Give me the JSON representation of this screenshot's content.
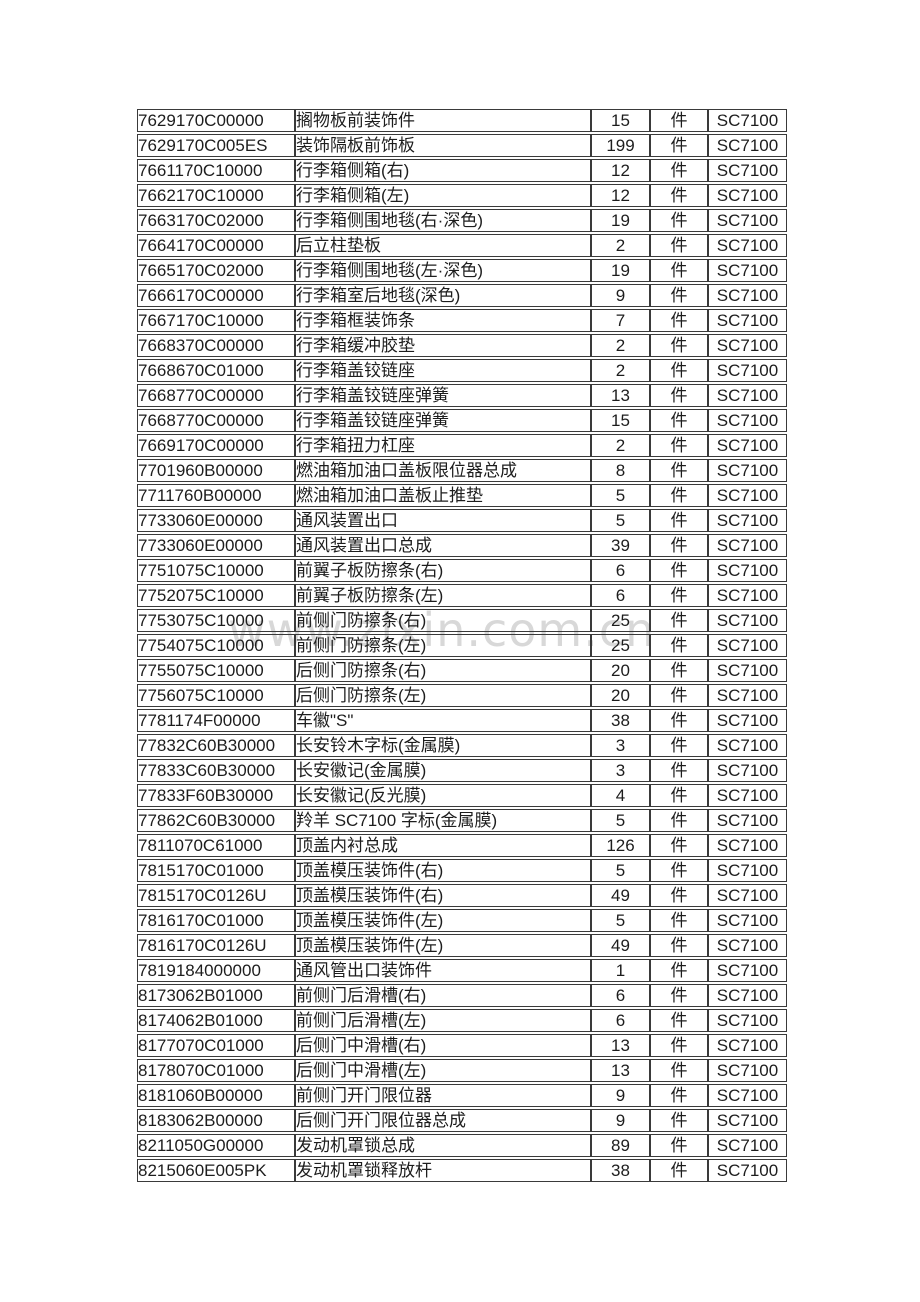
{
  "watermark": {
    "text": "www.zlxin.com.cn",
    "color": "#d8d8d8"
  },
  "table": {
    "columns": [
      {
        "key": "part_number"
      },
      {
        "key": "description"
      },
      {
        "key": "quantity"
      },
      {
        "key": "unit"
      },
      {
        "key": "model"
      }
    ],
    "rows": [
      {
        "part_number": "7629170C00000",
        "description": "搁物板前装饰件",
        "quantity": "15",
        "unit": "件",
        "model": "SC7100"
      },
      {
        "part_number": "7629170C005ES",
        "description": "装饰隔板前饰板",
        "quantity": "199",
        "unit": "件",
        "model": "SC7100"
      },
      {
        "part_number": "7661170C10000",
        "description": "行李箱侧箱(右)",
        "quantity": "12",
        "unit": "件",
        "model": "SC7100"
      },
      {
        "part_number": "7662170C10000",
        "description": "行李箱侧箱(左)",
        "quantity": "12",
        "unit": "件",
        "model": "SC7100"
      },
      {
        "part_number": "7663170C02000",
        "description": "行李箱侧围地毯(右·深色)",
        "quantity": "19",
        "unit": "件",
        "model": "SC7100"
      },
      {
        "part_number": "7664170C00000",
        "description": "后立柱垫板",
        "quantity": "2",
        "unit": "件",
        "model": "SC7100"
      },
      {
        "part_number": "7665170C02000",
        "description": "行李箱侧围地毯(左·深色)",
        "quantity": "19",
        "unit": "件",
        "model": "SC7100"
      },
      {
        "part_number": "7666170C00000",
        "description": "行李箱室后地毯(深色)",
        "quantity": "9",
        "unit": "件",
        "model": "SC7100"
      },
      {
        "part_number": "7667170C10000",
        "description": "行李箱框装饰条",
        "quantity": "7",
        "unit": "件",
        "model": "SC7100"
      },
      {
        "part_number": "7668370C00000",
        "description": "行李箱缓冲胶垫",
        "quantity": "2",
        "unit": "件",
        "model": "SC7100"
      },
      {
        "part_number": "7668670C01000",
        "description": "行李箱盖铰链座",
        "quantity": "2",
        "unit": "件",
        "model": "SC7100"
      },
      {
        "part_number": "7668770C00000",
        "description": "行李箱盖铰链座弹簧",
        "quantity": "13",
        "unit": "件",
        "model": "SC7100"
      },
      {
        "part_number": "7668770C00000",
        "description": "行李箱盖铰链座弹簧",
        "quantity": "15",
        "unit": "件",
        "model": "SC7100"
      },
      {
        "part_number": "7669170C00000",
        "description": "行李箱扭力杠座",
        "quantity": "2",
        "unit": "件",
        "model": "SC7100"
      },
      {
        "part_number": "7701960B00000",
        "description": "燃油箱加油口盖板限位器总成",
        "quantity": "8",
        "unit": "件",
        "model": "SC7100"
      },
      {
        "part_number": "7711760B00000",
        "description": "燃油箱加油口盖板止推垫",
        "quantity": "5",
        "unit": "件",
        "model": "SC7100"
      },
      {
        "part_number": "7733060E00000",
        "description": "通风装置出口",
        "quantity": "5",
        "unit": "件",
        "model": "SC7100"
      },
      {
        "part_number": "7733060E00000",
        "description": "通风装置出口总成",
        "quantity": "39",
        "unit": "件",
        "model": "SC7100"
      },
      {
        "part_number": "7751075C10000",
        "description": "前翼子板防擦条(右)",
        "quantity": "6",
        "unit": "件",
        "model": "SC7100"
      },
      {
        "part_number": "7752075C10000",
        "description": "前翼子板防擦条(左)",
        "quantity": "6",
        "unit": "件",
        "model": "SC7100"
      },
      {
        "part_number": "7753075C10000",
        "description": "前侧门防擦条(右)",
        "quantity": "25",
        "unit": "件",
        "model": "SC7100"
      },
      {
        "part_number": "7754075C10000",
        "description": "前侧门防擦条(左)",
        "quantity": "25",
        "unit": "件",
        "model": "SC7100"
      },
      {
        "part_number": "7755075C10000",
        "description": "后侧门防擦条(右)",
        "quantity": "20",
        "unit": "件",
        "model": "SC7100"
      },
      {
        "part_number": "7756075C10000",
        "description": "后侧门防擦条(左)",
        "quantity": "20",
        "unit": "件",
        "model": "SC7100"
      },
      {
        "part_number": "7781174F00000",
        "description": "车徽\"S\"",
        "quantity": "38",
        "unit": "件",
        "model": "SC7100"
      },
      {
        "part_number": "77832C60B30000",
        "description": "长安铃木字标(金属膜)",
        "quantity": "3",
        "unit": "件",
        "model": "SC7100"
      },
      {
        "part_number": "77833C60B30000",
        "description": "长安徽记(金属膜)",
        "quantity": "3",
        "unit": "件",
        "model": "SC7100"
      },
      {
        "part_number": "77833F60B30000",
        "description": "长安徽记(反光膜)",
        "quantity": "4",
        "unit": "件",
        "model": "SC7100"
      },
      {
        "part_number": "77862C60B30000",
        "description": "羚羊 SC7100 字标(金属膜)",
        "quantity": "5",
        "unit": "件",
        "model": "SC7100"
      },
      {
        "part_number": "7811070C61000",
        "description": "顶盖内衬总成",
        "quantity": "126",
        "unit": "件",
        "model": "SC7100"
      },
      {
        "part_number": "7815170C01000",
        "description": "顶盖模压装饰件(右)",
        "quantity": "5",
        "unit": "件",
        "model": "SC7100"
      },
      {
        "part_number": "7815170C0126U",
        "description": "顶盖模压装饰件(右)",
        "quantity": "49",
        "unit": "件",
        "model": "SC7100"
      },
      {
        "part_number": "7816170C01000",
        "description": "顶盖模压装饰件(左)",
        "quantity": "5",
        "unit": "件",
        "model": "SC7100"
      },
      {
        "part_number": "7816170C0126U",
        "description": "顶盖模压装饰件(左)",
        "quantity": "49",
        "unit": "件",
        "model": "SC7100"
      },
      {
        "part_number": "7819184000000",
        "description": "通风管出口装饰件",
        "quantity": "1",
        "unit": "件",
        "model": "SC7100"
      },
      {
        "part_number": "8173062B01000",
        "description": "前侧门后滑槽(右)",
        "quantity": "6",
        "unit": "件",
        "model": "SC7100"
      },
      {
        "part_number": "8174062B01000",
        "description": "前侧门后滑槽(左)",
        "quantity": "6",
        "unit": "件",
        "model": "SC7100"
      },
      {
        "part_number": "8177070C01000",
        "description": "后侧门中滑槽(右)",
        "quantity": "13",
        "unit": "件",
        "model": "SC7100"
      },
      {
        "part_number": "8178070C01000",
        "description": "后侧门中滑槽(左)",
        "quantity": "13",
        "unit": "件",
        "model": "SC7100"
      },
      {
        "part_number": "8181060B00000",
        "description": "前侧门开门限位器",
        "quantity": "9",
        "unit": "件",
        "model": "SC7100"
      },
      {
        "part_number": "8183062B00000",
        "description": "后侧门开门限位器总成",
        "quantity": "9",
        "unit": "件",
        "model": "SC7100"
      },
      {
        "part_number": "8211050G00000",
        "description": "发动机罩锁总成",
        "quantity": "89",
        "unit": "件",
        "model": "SC7100"
      },
      {
        "part_number": "8215060E005PK",
        "description": "发动机罩锁释放杆",
        "quantity": "38",
        "unit": "件",
        "model": "SC7100"
      }
    ]
  }
}
